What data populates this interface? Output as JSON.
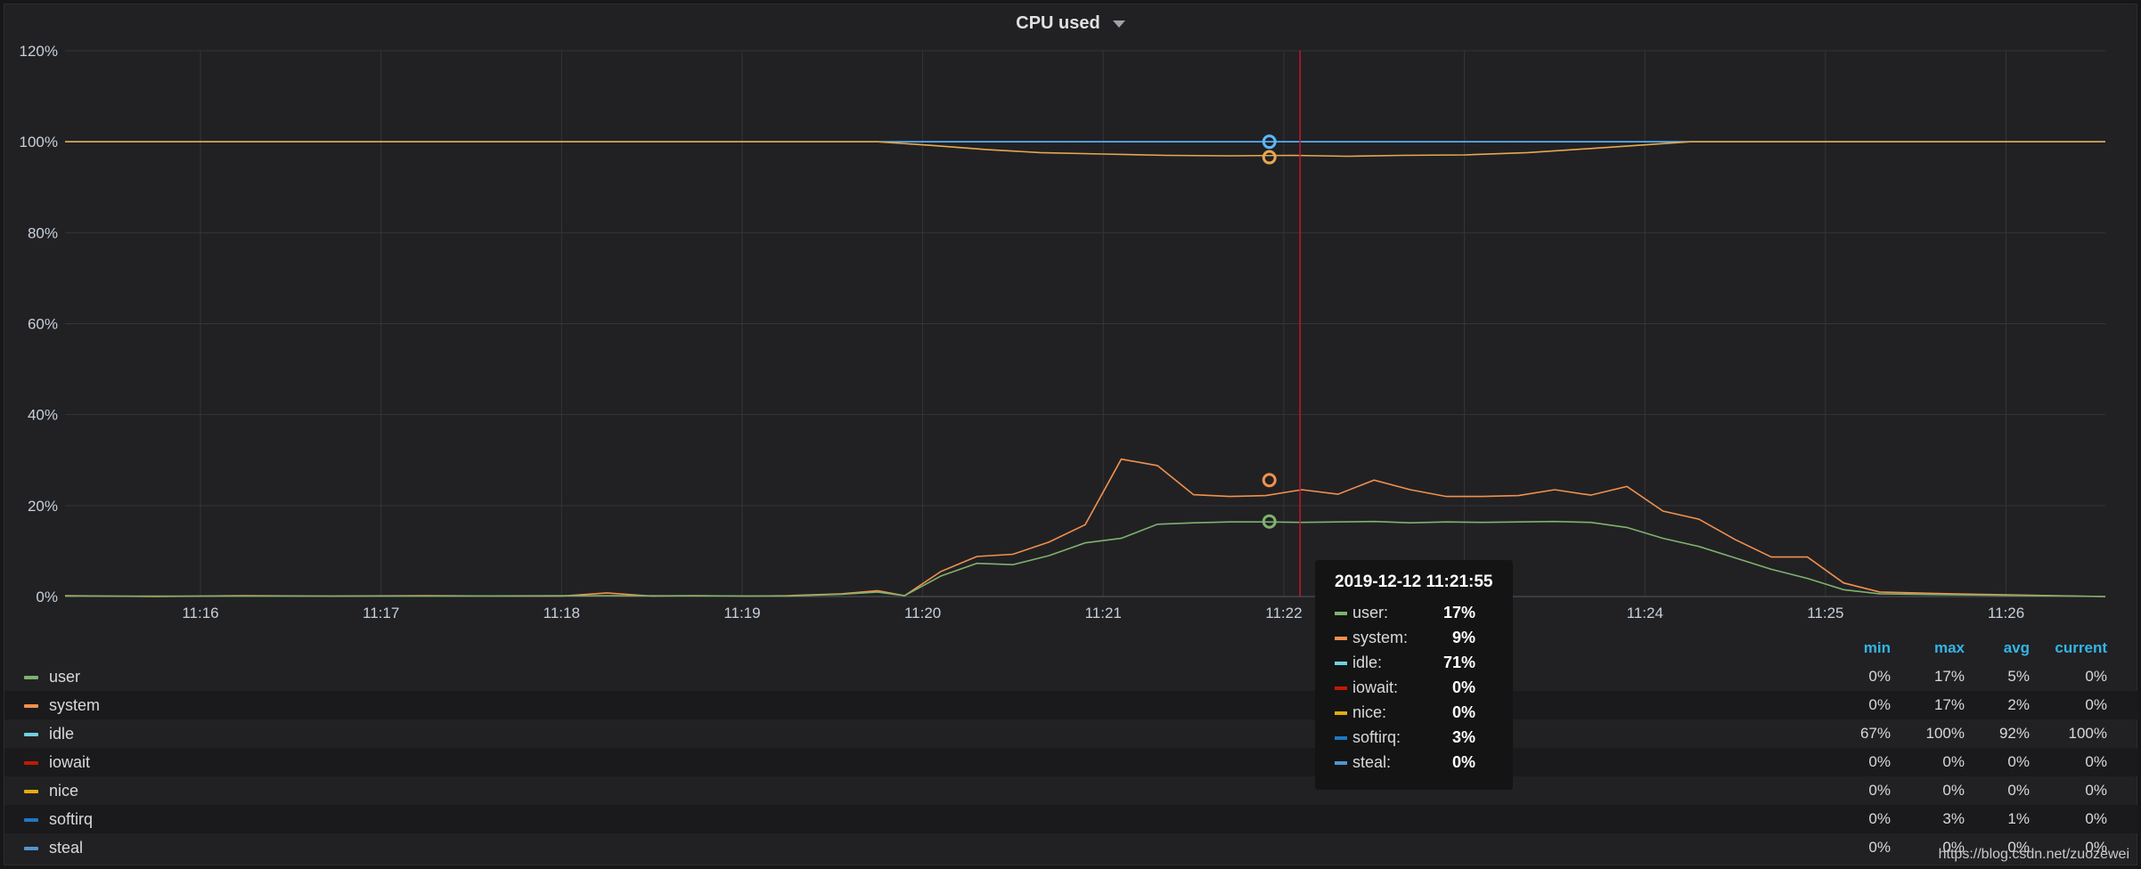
{
  "panel": {
    "title": "CPU used"
  },
  "chart_data": {
    "type": "line",
    "title": "CPU used",
    "y_ticks": [
      "0%",
      "20%",
      "40%",
      "60%",
      "80%",
      "100%",
      "120%"
    ],
    "ylim": [
      0,
      120
    ],
    "x_ticks": [
      "11:16",
      "11:17",
      "11:18",
      "11:19",
      "11:20",
      "11:21",
      "11:22",
      "11:23",
      "11:24",
      "11:25",
      "11:26"
    ],
    "xlim": [
      0,
      11.3
    ],
    "x_tick_values": [
      0.75,
      1.75,
      2.75,
      3.75,
      4.75,
      5.75,
      6.75,
      7.75,
      8.75,
      9.75,
      10.75
    ],
    "x_unit": "minutes after 11:15:15",
    "cursor_x": 6.84,
    "hover_x": 6.67,
    "series": [
      {
        "name": "idle",
        "color": "#5ab8ff",
        "points": [
          [
            0,
            100
          ],
          [
            11.3,
            100
          ]
        ]
      },
      {
        "name": "nice",
        "color": "#e5a94e",
        "points": [
          [
            0,
            100
          ],
          [
            4.5,
            100
          ],
          [
            4.8,
            99.2
          ],
          [
            5.1,
            98.3
          ],
          [
            5.4,
            97.6
          ],
          [
            5.75,
            97.3
          ],
          [
            6.1,
            97.0
          ],
          [
            6.45,
            96.9
          ],
          [
            6.8,
            97.0
          ],
          [
            7.1,
            96.8
          ],
          [
            7.4,
            97.0
          ],
          [
            7.75,
            97.1
          ],
          [
            8.1,
            97.6
          ],
          [
            8.45,
            98.5
          ],
          [
            8.75,
            99.3
          ],
          [
            9.0,
            100
          ],
          [
            11.3,
            100
          ]
        ]
      },
      {
        "name": "system",
        "color": "#f2914c",
        "points": [
          [
            0,
            0.2
          ],
          [
            0.5,
            0
          ],
          [
            1.0,
            0.2
          ],
          [
            1.5,
            0.1
          ],
          [
            2.0,
            0.2
          ],
          [
            2.5,
            0.1
          ],
          [
            2.75,
            0.1
          ],
          [
            3.0,
            0.8
          ],
          [
            3.25,
            0.1
          ],
          [
            3.5,
            0.2
          ],
          [
            3.8,
            0.1
          ],
          [
            4.0,
            0.2
          ],
          [
            4.3,
            0.6
          ],
          [
            4.5,
            1.3
          ],
          [
            4.65,
            0.2
          ],
          [
            4.85,
            5.5
          ],
          [
            5.05,
            8.8
          ],
          [
            5.25,
            9.3
          ],
          [
            5.45,
            12.0
          ],
          [
            5.65,
            15.8
          ],
          [
            5.85,
            30.2
          ],
          [
            6.05,
            28.8
          ],
          [
            6.25,
            22.4
          ],
          [
            6.45,
            22.0
          ],
          [
            6.65,
            22.2
          ],
          [
            6.85,
            23.5
          ],
          [
            7.05,
            22.5
          ],
          [
            7.25,
            25.6
          ],
          [
            7.45,
            23.5
          ],
          [
            7.65,
            22.0
          ],
          [
            7.85,
            22.0
          ],
          [
            8.05,
            22.2
          ],
          [
            8.25,
            23.5
          ],
          [
            8.45,
            22.3
          ],
          [
            8.65,
            24.2
          ],
          [
            8.85,
            18.8
          ],
          [
            9.05,
            17.0
          ],
          [
            9.25,
            12.5
          ],
          [
            9.45,
            8.7
          ],
          [
            9.65,
            8.7
          ],
          [
            9.85,
            3.0
          ],
          [
            10.05,
            1.0
          ],
          [
            10.45,
            0.6
          ],
          [
            11.3,
            0
          ]
        ]
      },
      {
        "name": "user",
        "color": "#7eb26d",
        "points": [
          [
            0,
            0.1
          ],
          [
            1.0,
            0.1
          ],
          [
            2.0,
            0.1
          ],
          [
            3.0,
            0.2
          ],
          [
            4.0,
            0.1
          ],
          [
            4.3,
            0.5
          ],
          [
            4.5,
            1.0
          ],
          [
            4.65,
            0.2
          ],
          [
            4.85,
            4.5
          ],
          [
            5.05,
            7.3
          ],
          [
            5.25,
            7.0
          ],
          [
            5.45,
            9.0
          ],
          [
            5.65,
            11.8
          ],
          [
            5.85,
            12.8
          ],
          [
            6.05,
            15.9
          ],
          [
            6.25,
            16.2
          ],
          [
            6.45,
            16.4
          ],
          [
            6.65,
            16.4
          ],
          [
            6.85,
            16.3
          ],
          [
            7.05,
            16.4
          ],
          [
            7.25,
            16.5
          ],
          [
            7.45,
            16.2
          ],
          [
            7.65,
            16.4
          ],
          [
            7.85,
            16.3
          ],
          [
            8.05,
            16.4
          ],
          [
            8.25,
            16.5
          ],
          [
            8.45,
            16.3
          ],
          [
            8.65,
            15.2
          ],
          [
            8.85,
            12.8
          ],
          [
            9.05,
            11.0
          ],
          [
            9.25,
            8.5
          ],
          [
            9.45,
            6.0
          ],
          [
            9.65,
            4.0
          ],
          [
            9.85,
            1.5
          ],
          [
            10.05,
            0.6
          ],
          [
            10.45,
            0.4
          ],
          [
            11.3,
            0
          ]
        ]
      }
    ],
    "hover_markers": [
      {
        "series": "idle",
        "value": 100
      },
      {
        "series": "nice",
        "value": 96.6
      },
      {
        "series": "system",
        "value": 25.6
      },
      {
        "series": "user",
        "value": 16.5
      }
    ]
  },
  "legend": {
    "headers": {
      "min": "min",
      "max": "max",
      "avg": "avg",
      "current": "current"
    },
    "rows": [
      {
        "name": "user",
        "color": "#7eb26d",
        "min": "0%",
        "max": "17%",
        "avg": "5%",
        "current": "0%"
      },
      {
        "name": "system",
        "color": "#f2914c",
        "min": "0%",
        "max": "17%",
        "avg": "2%",
        "current": "0%"
      },
      {
        "name": "idle",
        "color": "#6ed0e0",
        "min": "67%",
        "max": "100%",
        "avg": "92%",
        "current": "100%"
      },
      {
        "name": "iowait",
        "color": "#bf1b00",
        "min": "0%",
        "max": "0%",
        "avg": "0%",
        "current": "0%"
      },
      {
        "name": "nice",
        "color": "#e5ac0e",
        "min": "0%",
        "max": "0%",
        "avg": "0%",
        "current": "0%"
      },
      {
        "name": "softirq",
        "color": "#1f78c1",
        "min": "0%",
        "max": "3%",
        "avg": "1%",
        "current": "0%"
      },
      {
        "name": "steal",
        "color": "#5195ce",
        "min": "0%",
        "max": "0%",
        "avg": "0%",
        "current": "0%"
      }
    ]
  },
  "tooltip": {
    "time": "2019-12-12 11:21:55",
    "rows": [
      {
        "label": "user:",
        "value": "17%",
        "color": "#7eb26d"
      },
      {
        "label": "system:",
        "value": "9%",
        "color": "#f2914c"
      },
      {
        "label": "idle:",
        "value": "71%",
        "color": "#6ed0e0"
      },
      {
        "label": "iowait:",
        "value": "0%",
        "color": "#bf1b00"
      },
      {
        "label": "nice:",
        "value": "0%",
        "color": "#e5ac0e"
      },
      {
        "label": "softirq:",
        "value": "3%",
        "color": "#1f78c1"
      },
      {
        "label": "steal:",
        "value": "0%",
        "color": "#5195ce"
      }
    ]
  },
  "watermark": "https://blog.csdn.net/zuozewei"
}
